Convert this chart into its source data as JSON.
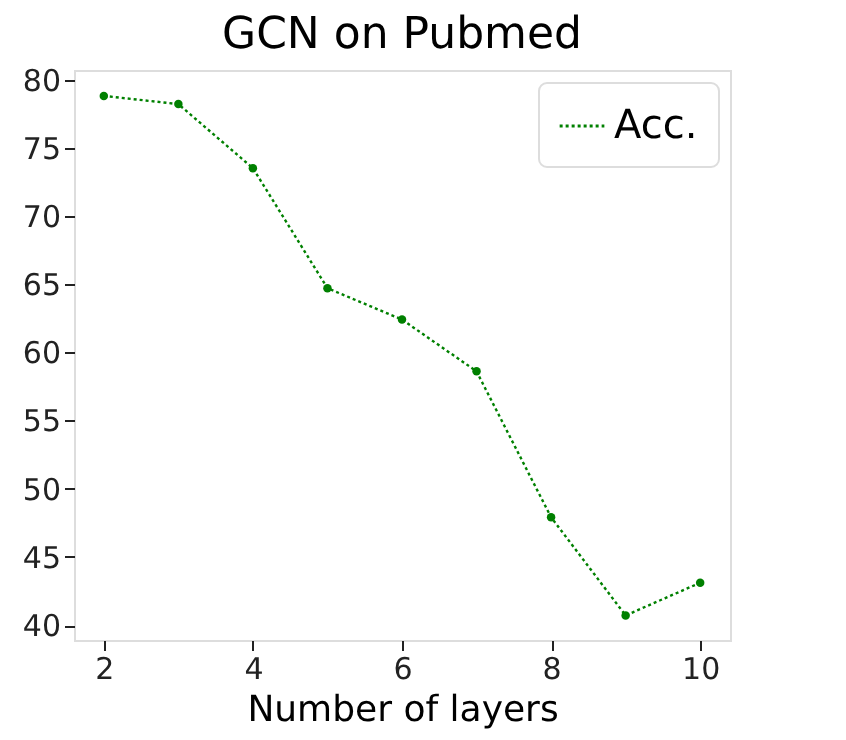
{
  "chart_data": {
    "type": "line",
    "title": "GCN on Pubmed",
    "xlabel": "Number of layers",
    "x": [
      2,
      3,
      4,
      5,
      6,
      7,
      8,
      9,
      10
    ],
    "series": [
      {
        "name": "Acc.",
        "color": "#008000",
        "values": [
          78.8,
          78.2,
          73.5,
          64.7,
          62.4,
          58.6,
          47.9,
          40.7,
          43.1
        ]
      }
    ],
    "xlim": [
      1.6,
      10.4
    ],
    "xticks": [
      2,
      4,
      6,
      8,
      10
    ],
    "ylim": [
      38.9,
      80.7
    ],
    "yticks": [
      40,
      45,
      50,
      55,
      60,
      65,
      70,
      75,
      80
    ],
    "grid": false,
    "legend": "top right",
    "marker": "circle",
    "line_style": "dotted"
  }
}
